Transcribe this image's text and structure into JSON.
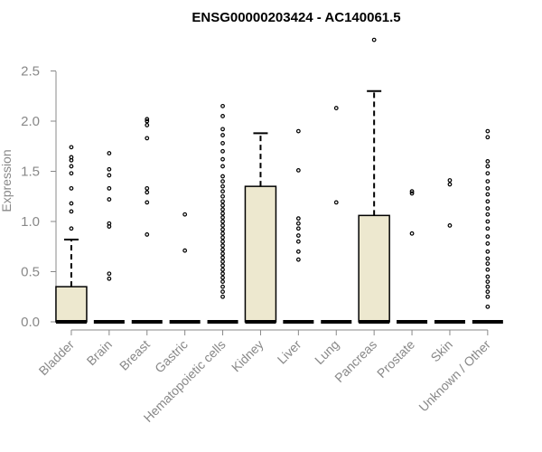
{
  "chart_data": {
    "type": "box",
    "title": "ENSG00000203424 - AC140061.5",
    "xlabel": "",
    "ylabel": "Expression",
    "ylim": [
      0,
      2.8
    ],
    "yticks": [
      "0.0",
      "0.5",
      "1.0",
      "1.5",
      "2.0",
      "2.5"
    ],
    "grid": false,
    "box_color": "#ede8cf",
    "categories": [
      "Bladder",
      "Brain",
      "Breast",
      "Gastric",
      "Hematopoietic cells",
      "Kidney",
      "Liver",
      "Lung",
      "Pancreas",
      "Prostate",
      "Skin",
      "Unknown / Other"
    ],
    "boxes": [
      {
        "q1": 0,
        "median": 0,
        "q3": 0.35,
        "whisker_low": 0,
        "whisker_high": 0.82,
        "outliers": [
          0.93,
          1.1,
          1.18,
          1.33,
          1.48,
          1.55,
          1.61,
          1.64,
          1.74
        ]
      },
      {
        "q1": 0,
        "median": 0,
        "q3": 0,
        "whisker_low": 0,
        "whisker_high": 0,
        "outliers": [
          0.43,
          0.48,
          0.95,
          0.98,
          1.22,
          1.33,
          1.46,
          1.52,
          1.68
        ]
      },
      {
        "q1": 0,
        "median": 0,
        "q3": 0,
        "whisker_low": 0,
        "whisker_high": 0,
        "outliers": [
          0.87,
          1.19,
          1.29,
          1.33,
          1.83,
          1.96,
          2.0,
          2.02
        ]
      },
      {
        "q1": 0,
        "median": 0,
        "q3": 0,
        "whisker_low": 0,
        "whisker_high": 0,
        "outliers": [
          0.71,
          1.07
        ]
      },
      {
        "q1": 0,
        "median": 0,
        "q3": 0,
        "whisker_low": 0,
        "whisker_high": 0,
        "outliers": [
          0.25,
          0.3,
          0.35,
          0.4,
          0.44,
          0.48,
          0.52,
          0.56,
          0.6,
          0.64,
          0.68,
          0.72,
          0.76,
          0.8,
          0.84,
          0.88,
          0.92,
          0.96,
          1.0,
          1.04,
          1.08,
          1.12,
          1.16,
          1.2,
          1.25,
          1.3,
          1.35,
          1.4,
          1.45,
          1.55,
          1.62,
          1.7,
          1.78,
          1.86,
          1.92,
          2.05,
          2.15
        ]
      },
      {
        "q1": 0,
        "median": 0,
        "q3": 1.35,
        "whisker_low": 0,
        "whisker_high": 1.88,
        "outliers": []
      },
      {
        "q1": 0,
        "median": 0,
        "q3": 0,
        "whisker_low": 0,
        "whisker_high": 0,
        "outliers": [
          0.62,
          0.7,
          0.8,
          0.86,
          0.93,
          0.98,
          1.03,
          1.51,
          1.9
        ]
      },
      {
        "q1": 0,
        "median": 0,
        "q3": 0,
        "whisker_low": 0,
        "whisker_high": 0,
        "outliers": [
          1.19,
          2.13
        ]
      },
      {
        "q1": 0,
        "median": 0,
        "q3": 1.06,
        "whisker_low": 0,
        "whisker_high": 2.3,
        "outliers": [
          2.81
        ]
      },
      {
        "q1": 0,
        "median": 0,
        "q3": 0,
        "whisker_low": 0,
        "whisker_high": 0,
        "outliers": [
          0.88,
          1.28,
          1.3
        ]
      },
      {
        "q1": 0,
        "median": 0,
        "q3": 0,
        "whisker_low": 0,
        "whisker_high": 0,
        "outliers": [
          0.96,
          1.37,
          1.41
        ]
      },
      {
        "q1": 0,
        "median": 0,
        "q3": 0,
        "whisker_low": 0,
        "whisker_high": 0,
        "outliers": [
          0.15,
          0.25,
          0.3,
          0.35,
          0.4,
          0.45,
          0.52,
          0.58,
          0.63,
          0.7,
          0.78,
          0.85,
          0.93,
          1.0,
          1.07,
          1.13,
          1.2,
          1.27,
          1.33,
          1.4,
          1.48,
          1.55,
          1.6,
          1.84,
          1.9
        ]
      }
    ]
  }
}
